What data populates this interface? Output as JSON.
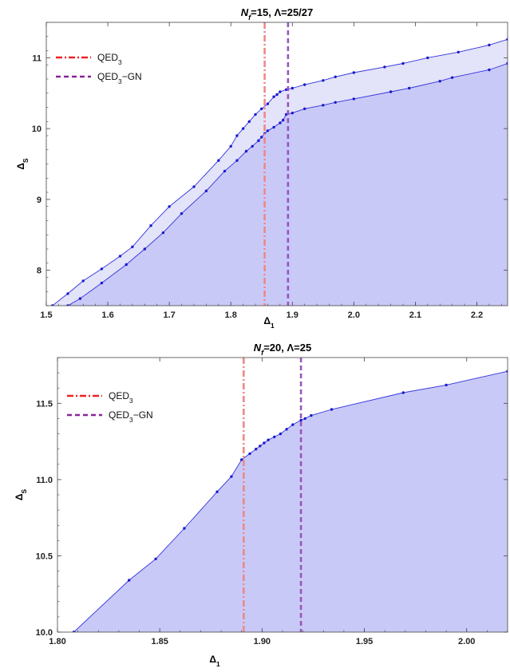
{
  "chart_data": [
    {
      "type": "area",
      "title_parts": [
        "N",
        "f",
        "=15, Λ=25/27"
      ],
      "xlabel_parts": [
        "Δ",
        "1"
      ],
      "ylabel_parts": [
        "Δ",
        "S"
      ],
      "xlim": [
        1.5,
        2.25
      ],
      "ylim": [
        7.5,
        11.5
      ],
      "xticks": [
        "1.5",
        "1.6",
        "1.7",
        "1.8",
        "1.9",
        "2.0",
        "2.1",
        "2.2"
      ],
      "yticks": [
        "8",
        "9",
        "10",
        "11"
      ],
      "fill_color": "#c9c9f7",
      "band_color": "#e3e3f9",
      "line_color": "#3333dd",
      "series": [
        {
          "role": "upper",
          "x": [
            1.51,
            1.535,
            1.56,
            1.59,
            1.62,
            1.64,
            1.67,
            1.7,
            1.74,
            1.78,
            1.8,
            1.81,
            1.82,
            1.83,
            1.84,
            1.85,
            1.86,
            1.87,
            1.875,
            1.88,
            1.89,
            1.9,
            1.92,
            1.95,
            1.97,
            2.0,
            2.05,
            2.08,
            2.12,
            2.17,
            2.22,
            2.25
          ],
          "y": [
            7.5,
            7.67,
            7.85,
            8.02,
            8.2,
            8.33,
            8.63,
            8.9,
            9.18,
            9.55,
            9.75,
            9.9,
            10.0,
            10.1,
            10.2,
            10.28,
            10.35,
            10.45,
            10.48,
            10.52,
            10.55,
            10.57,
            10.62,
            10.68,
            10.73,
            10.79,
            10.87,
            10.92,
            11.0,
            11.08,
            11.18,
            11.26
          ]
        },
        {
          "role": "lower",
          "x": [
            1.5,
            1.535,
            1.555,
            1.59,
            1.63,
            1.66,
            1.69,
            1.72,
            1.76,
            1.79,
            1.81,
            1.825,
            1.835,
            1.845,
            1.85,
            1.855,
            1.86,
            1.87,
            1.88,
            1.885,
            1.89,
            1.9,
            1.92,
            1.95,
            1.97,
            2.0,
            2.06,
            2.09,
            2.14,
            2.16,
            2.22,
            2.25
          ],
          "y": [
            7.44,
            7.5,
            7.6,
            7.82,
            8.08,
            8.3,
            8.53,
            8.8,
            9.12,
            9.4,
            9.55,
            9.68,
            9.75,
            9.83,
            9.88,
            9.93,
            9.97,
            10.02,
            10.08,
            10.12,
            10.2,
            10.22,
            10.28,
            10.33,
            10.37,
            10.42,
            10.52,
            10.57,
            10.67,
            10.72,
            10.83,
            10.92
          ]
        }
      ],
      "vlines": [
        {
          "label": "QED",
          "sub": "3",
          "suffix": "",
          "x": 1.855,
          "color": "#ee8888",
          "dash": "8 3 2 3"
        },
        {
          "label": "QED",
          "sub": "3",
          "suffix": "−GN",
          "x": 1.893,
          "color": "#9955bb",
          "dash": "6 4"
        }
      ],
      "legend_position": "top-left",
      "legend": [
        {
          "label": "QED",
          "sub": "3",
          "suffix": "",
          "color": "#ee2222",
          "dash": "8 3 2 3"
        },
        {
          "label": "QED",
          "sub": "3",
          "suffix": "−GN",
          "color": "#882299",
          "dash": "6 4"
        }
      ]
    },
    {
      "type": "area",
      "title_parts": [
        "N",
        "f",
        "=20, Λ=25"
      ],
      "xlabel_parts": [
        "Δ",
        "1"
      ],
      "ylabel_parts": [
        "Δ",
        "S"
      ],
      "xlim": [
        1.8,
        2.02
      ],
      "ylim": [
        10.0,
        11.8
      ],
      "xticks": [
        "1.80",
        "1.85",
        "1.90",
        "1.95",
        "2.00"
      ],
      "yticks": [
        "10.0",
        "10.5",
        "11.0",
        "11.5"
      ],
      "fill_color": "#c9c9f7",
      "band_color": "#e3e3f9",
      "line_color": "#3333dd",
      "series": [
        {
          "role": "boundary",
          "x": [
            1.808,
            1.835,
            1.848,
            1.862,
            1.878,
            1.885,
            1.89,
            1.894,
            1.897,
            1.899,
            1.901,
            1.903,
            1.906,
            1.909,
            1.912,
            1.915,
            1.919,
            1.921,
            1.924,
            1.934,
            1.969,
            1.99,
            2.02
          ],
          "y": [
            10.0,
            10.34,
            10.48,
            10.68,
            10.92,
            11.02,
            11.13,
            11.17,
            11.2,
            11.22,
            11.24,
            11.26,
            11.28,
            11.3,
            11.33,
            11.36,
            11.39,
            11.4,
            11.42,
            11.46,
            11.57,
            11.62,
            11.71
          ]
        }
      ],
      "vlines": [
        {
          "label": "QED",
          "sub": "3",
          "suffix": "",
          "x": 1.891,
          "color": "#ee8888",
          "dash": "8 3 2 3"
        },
        {
          "label": "QED",
          "sub": "3",
          "suffix": "−GN",
          "x": 1.919,
          "color": "#9955bb",
          "dash": "6 4"
        }
      ],
      "legend_position": "top-left",
      "legend": [
        {
          "label": "QED",
          "sub": "3",
          "suffix": "",
          "color": "#ee2222",
          "dash": "8 3 2 3"
        },
        {
          "label": "QED",
          "sub": "3",
          "suffix": "−GN",
          "color": "#882299",
          "dash": "6 4"
        }
      ]
    }
  ]
}
